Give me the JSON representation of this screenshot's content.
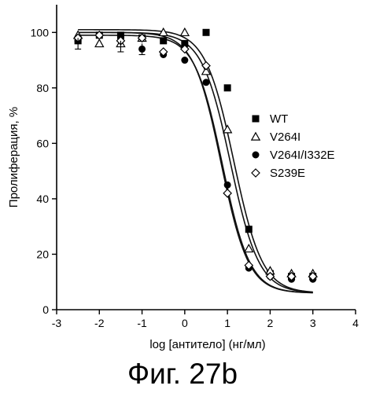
{
  "figure_caption": "Фиг. 27b",
  "chart_data": {
    "type": "scatter",
    "xlabel": "log [антитело] (нг/мл)",
    "ylabel": "Пролиферация, %",
    "xlim": [
      -3,
      4
    ],
    "ylim": [
      0,
      110
    ],
    "x_ticks": [
      "-3",
      "-2",
      "-1",
      "0",
      "1",
      "2",
      "3",
      "4"
    ],
    "y_ticks": [
      "0",
      "20",
      "40",
      "60",
      "80",
      "100"
    ],
    "legend_position": "right",
    "series": [
      {
        "name": "WT",
        "marker": "square",
        "x": [
          -2.5,
          -2,
          -1.5,
          -1,
          -0.5,
          0,
          0.5,
          1,
          1.5,
          2,
          2.5,
          3
        ],
        "y": [
          97,
          99,
          99,
          98,
          97,
          96,
          100,
          80,
          29,
          13,
          12,
          12
        ],
        "fit": {
          "top": 101,
          "bottom": 6,
          "ic50_log": 1.15,
          "hill": 1.3
        }
      },
      {
        "name": "V264I",
        "marker": "triangle",
        "x": [
          -2.5,
          -2,
          -1.5,
          -1,
          -0.5,
          0,
          0.5,
          1,
          1.5,
          2,
          2.5,
          3
        ],
        "y": [
          99,
          96,
          96,
          98,
          100,
          100,
          86,
          65,
          22,
          14,
          13,
          13
        ],
        "fit": {
          "top": 100,
          "bottom": 6,
          "ic50_log": 1.07,
          "hill": 1.3
        }
      },
      {
        "name": "V264I/I332E",
        "marker": "circle",
        "x": [
          -2.5,
          -2,
          -1.5,
          -1,
          -0.5,
          0,
          0.5,
          1,
          1.5,
          2,
          2.5,
          3
        ],
        "y": [
          97,
          99,
          98,
          94,
          92,
          90,
          82,
          45,
          15,
          12,
          11,
          11
        ],
        "fit": {
          "top": 100,
          "bottom": 6,
          "ic50_log": 0.85,
          "hill": 1.35
        }
      },
      {
        "name": "S239E",
        "marker": "diamond",
        "x": [
          -2.5,
          -2,
          -1.5,
          -1,
          -0.5,
          0,
          0.5,
          1,
          1.5,
          2,
          2.5,
          3
        ],
        "y": [
          98,
          99,
          97,
          98,
          93,
          94,
          88,
          42,
          16,
          12,
          12,
          12
        ],
        "fit": {
          "top": 99,
          "bottom": 6,
          "ic50_log": 0.88,
          "hill": 1.35
        }
      }
    ]
  }
}
